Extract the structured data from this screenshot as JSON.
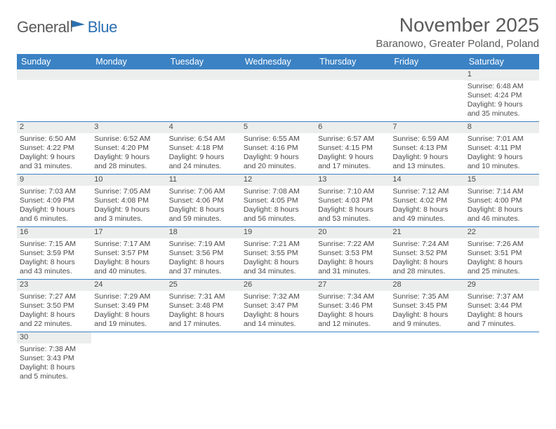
{
  "logo": {
    "word1": "General",
    "word2": "Blue"
  },
  "title": "November 2025",
  "location": "Baranowo, Greater Poland, Poland",
  "weekdays": [
    "Sunday",
    "Monday",
    "Tuesday",
    "Wednesday",
    "Thursday",
    "Friday",
    "Saturday"
  ],
  "colors": {
    "header_bg": "#3b82c4",
    "row_divider": "#3b82c4",
    "daynum_bg": "#eceded",
    "text": "#4a4a4a",
    "logo_gray": "#5a5a5a",
    "logo_blue": "#2b6fb0"
  },
  "weeks": [
    [
      {
        "n": "",
        "sr": "",
        "ss": "",
        "dl": ""
      },
      {
        "n": "",
        "sr": "",
        "ss": "",
        "dl": ""
      },
      {
        "n": "",
        "sr": "",
        "ss": "",
        "dl": ""
      },
      {
        "n": "",
        "sr": "",
        "ss": "",
        "dl": ""
      },
      {
        "n": "",
        "sr": "",
        "ss": "",
        "dl": ""
      },
      {
        "n": "",
        "sr": "",
        "ss": "",
        "dl": ""
      },
      {
        "n": "1",
        "sr": "Sunrise: 6:48 AM",
        "ss": "Sunset: 4:24 PM",
        "dl": "Daylight: 9 hours and 35 minutes."
      }
    ],
    [
      {
        "n": "2",
        "sr": "Sunrise: 6:50 AM",
        "ss": "Sunset: 4:22 PM",
        "dl": "Daylight: 9 hours and 31 minutes."
      },
      {
        "n": "3",
        "sr": "Sunrise: 6:52 AM",
        "ss": "Sunset: 4:20 PM",
        "dl": "Daylight: 9 hours and 28 minutes."
      },
      {
        "n": "4",
        "sr": "Sunrise: 6:54 AM",
        "ss": "Sunset: 4:18 PM",
        "dl": "Daylight: 9 hours and 24 minutes."
      },
      {
        "n": "5",
        "sr": "Sunrise: 6:55 AM",
        "ss": "Sunset: 4:16 PM",
        "dl": "Daylight: 9 hours and 20 minutes."
      },
      {
        "n": "6",
        "sr": "Sunrise: 6:57 AM",
        "ss": "Sunset: 4:15 PM",
        "dl": "Daylight: 9 hours and 17 minutes."
      },
      {
        "n": "7",
        "sr": "Sunrise: 6:59 AM",
        "ss": "Sunset: 4:13 PM",
        "dl": "Daylight: 9 hours and 13 minutes."
      },
      {
        "n": "8",
        "sr": "Sunrise: 7:01 AM",
        "ss": "Sunset: 4:11 PM",
        "dl": "Daylight: 9 hours and 10 minutes."
      }
    ],
    [
      {
        "n": "9",
        "sr": "Sunrise: 7:03 AM",
        "ss": "Sunset: 4:09 PM",
        "dl": "Daylight: 9 hours and 6 minutes."
      },
      {
        "n": "10",
        "sr": "Sunrise: 7:05 AM",
        "ss": "Sunset: 4:08 PM",
        "dl": "Daylight: 9 hours and 3 minutes."
      },
      {
        "n": "11",
        "sr": "Sunrise: 7:06 AM",
        "ss": "Sunset: 4:06 PM",
        "dl": "Daylight: 8 hours and 59 minutes."
      },
      {
        "n": "12",
        "sr": "Sunrise: 7:08 AM",
        "ss": "Sunset: 4:05 PM",
        "dl": "Daylight: 8 hours and 56 minutes."
      },
      {
        "n": "13",
        "sr": "Sunrise: 7:10 AM",
        "ss": "Sunset: 4:03 PM",
        "dl": "Daylight: 8 hours and 53 minutes."
      },
      {
        "n": "14",
        "sr": "Sunrise: 7:12 AM",
        "ss": "Sunset: 4:02 PM",
        "dl": "Daylight: 8 hours and 49 minutes."
      },
      {
        "n": "15",
        "sr": "Sunrise: 7:14 AM",
        "ss": "Sunset: 4:00 PM",
        "dl": "Daylight: 8 hours and 46 minutes."
      }
    ],
    [
      {
        "n": "16",
        "sr": "Sunrise: 7:15 AM",
        "ss": "Sunset: 3:59 PM",
        "dl": "Daylight: 8 hours and 43 minutes."
      },
      {
        "n": "17",
        "sr": "Sunrise: 7:17 AM",
        "ss": "Sunset: 3:57 PM",
        "dl": "Daylight: 8 hours and 40 minutes."
      },
      {
        "n": "18",
        "sr": "Sunrise: 7:19 AM",
        "ss": "Sunset: 3:56 PM",
        "dl": "Daylight: 8 hours and 37 minutes."
      },
      {
        "n": "19",
        "sr": "Sunrise: 7:21 AM",
        "ss": "Sunset: 3:55 PM",
        "dl": "Daylight: 8 hours and 34 minutes."
      },
      {
        "n": "20",
        "sr": "Sunrise: 7:22 AM",
        "ss": "Sunset: 3:53 PM",
        "dl": "Daylight: 8 hours and 31 minutes."
      },
      {
        "n": "21",
        "sr": "Sunrise: 7:24 AM",
        "ss": "Sunset: 3:52 PM",
        "dl": "Daylight: 8 hours and 28 minutes."
      },
      {
        "n": "22",
        "sr": "Sunrise: 7:26 AM",
        "ss": "Sunset: 3:51 PM",
        "dl": "Daylight: 8 hours and 25 minutes."
      }
    ],
    [
      {
        "n": "23",
        "sr": "Sunrise: 7:27 AM",
        "ss": "Sunset: 3:50 PM",
        "dl": "Daylight: 8 hours and 22 minutes."
      },
      {
        "n": "24",
        "sr": "Sunrise: 7:29 AM",
        "ss": "Sunset: 3:49 PM",
        "dl": "Daylight: 8 hours and 19 minutes."
      },
      {
        "n": "25",
        "sr": "Sunrise: 7:31 AM",
        "ss": "Sunset: 3:48 PM",
        "dl": "Daylight: 8 hours and 17 minutes."
      },
      {
        "n": "26",
        "sr": "Sunrise: 7:32 AM",
        "ss": "Sunset: 3:47 PM",
        "dl": "Daylight: 8 hours and 14 minutes."
      },
      {
        "n": "27",
        "sr": "Sunrise: 7:34 AM",
        "ss": "Sunset: 3:46 PM",
        "dl": "Daylight: 8 hours and 12 minutes."
      },
      {
        "n": "28",
        "sr": "Sunrise: 7:35 AM",
        "ss": "Sunset: 3:45 PM",
        "dl": "Daylight: 8 hours and 9 minutes."
      },
      {
        "n": "29",
        "sr": "Sunrise: 7:37 AM",
        "ss": "Sunset: 3:44 PM",
        "dl": "Daylight: 8 hours and 7 minutes."
      }
    ],
    [
      {
        "n": "30",
        "sr": "Sunrise: 7:38 AM",
        "ss": "Sunset: 3:43 PM",
        "dl": "Daylight: 8 hours and 5 minutes."
      },
      {
        "n": "",
        "sr": "",
        "ss": "",
        "dl": ""
      },
      {
        "n": "",
        "sr": "",
        "ss": "",
        "dl": ""
      },
      {
        "n": "",
        "sr": "",
        "ss": "",
        "dl": ""
      },
      {
        "n": "",
        "sr": "",
        "ss": "",
        "dl": ""
      },
      {
        "n": "",
        "sr": "",
        "ss": "",
        "dl": ""
      },
      {
        "n": "",
        "sr": "",
        "ss": "",
        "dl": ""
      }
    ]
  ]
}
